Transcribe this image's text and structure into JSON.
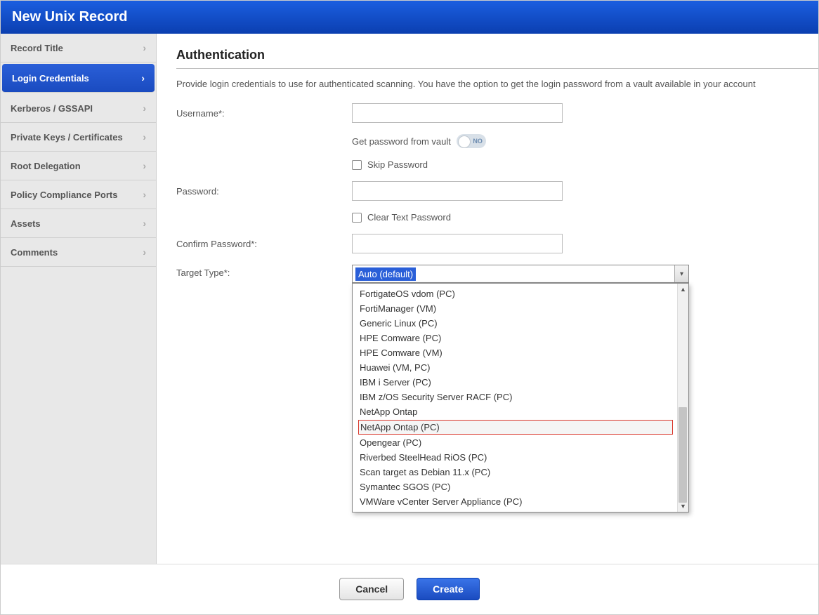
{
  "header": {
    "title": "New Unix Record"
  },
  "sidebar": {
    "items": [
      {
        "label": "Record Title",
        "active": false
      },
      {
        "label": "Login Credentials",
        "active": true
      },
      {
        "label": "Kerberos / GSSAPI",
        "active": false
      },
      {
        "label": "Private Keys / Certificates",
        "active": false
      },
      {
        "label": "Root Delegation",
        "active": false
      },
      {
        "label": "Policy Compliance Ports",
        "active": false
      },
      {
        "label": "Assets",
        "active": false
      },
      {
        "label": "Comments",
        "active": false
      }
    ]
  },
  "main": {
    "section_title": "Authentication",
    "description": "Provide login credentials to use for authenticated scanning. You have the option to get the login password from a vault available in your account",
    "labels": {
      "username": "Username*:",
      "vault": "Get password from vault",
      "vault_toggle": "NO",
      "skip_password": "Skip Password",
      "password": "Password:",
      "clear_text": "Clear Text Password",
      "confirm_password": "Confirm Password*:",
      "target_type": "Target Type*:"
    },
    "values": {
      "username": "",
      "password": "",
      "confirm_password": ""
    },
    "select": {
      "selected": "Auto (default)",
      "options": [
        {
          "label": "FortigateOS vdom (PC)",
          "highlight": false
        },
        {
          "label": "FortiManager (VM)",
          "highlight": false
        },
        {
          "label": "Generic Linux (PC)",
          "highlight": false
        },
        {
          "label": "HPE Comware (PC)",
          "highlight": false
        },
        {
          "label": "HPE Comware (VM)",
          "highlight": false
        },
        {
          "label": "Huawei (VM, PC)",
          "highlight": false
        },
        {
          "label": "IBM i Server (PC)",
          "highlight": false
        },
        {
          "label": "IBM z/OS Security Server RACF (PC)",
          "highlight": false
        },
        {
          "label": "NetApp Ontap",
          "highlight": false
        },
        {
          "label": "NetApp Ontap (PC)",
          "highlight": true
        },
        {
          "label": "Opengear (PC)",
          "highlight": false
        },
        {
          "label": "Riverbed SteelHead RiOS (PC)",
          "highlight": false
        },
        {
          "label": "Scan target as Debian 11.x (PC)",
          "highlight": false
        },
        {
          "label": "Symantec SGOS (PC)",
          "highlight": false
        },
        {
          "label": "VMWare vCenter Server Appliance (PC)",
          "highlight": false
        }
      ],
      "scrollbar": {
        "thumb_top_pct": 54,
        "thumb_height_pct": 42
      }
    }
  },
  "footer": {
    "cancel": "Cancel",
    "create": "Create"
  },
  "colors": {
    "header_grad_top": "#1b5ee0",
    "header_grad_bottom": "#0b3fb0",
    "sidebar_bg": "#e8e8e8",
    "active_grad_top": "#2a5fd8",
    "active_grad_bottom": "#1a4bc0",
    "highlight_border": "#d9362a"
  }
}
